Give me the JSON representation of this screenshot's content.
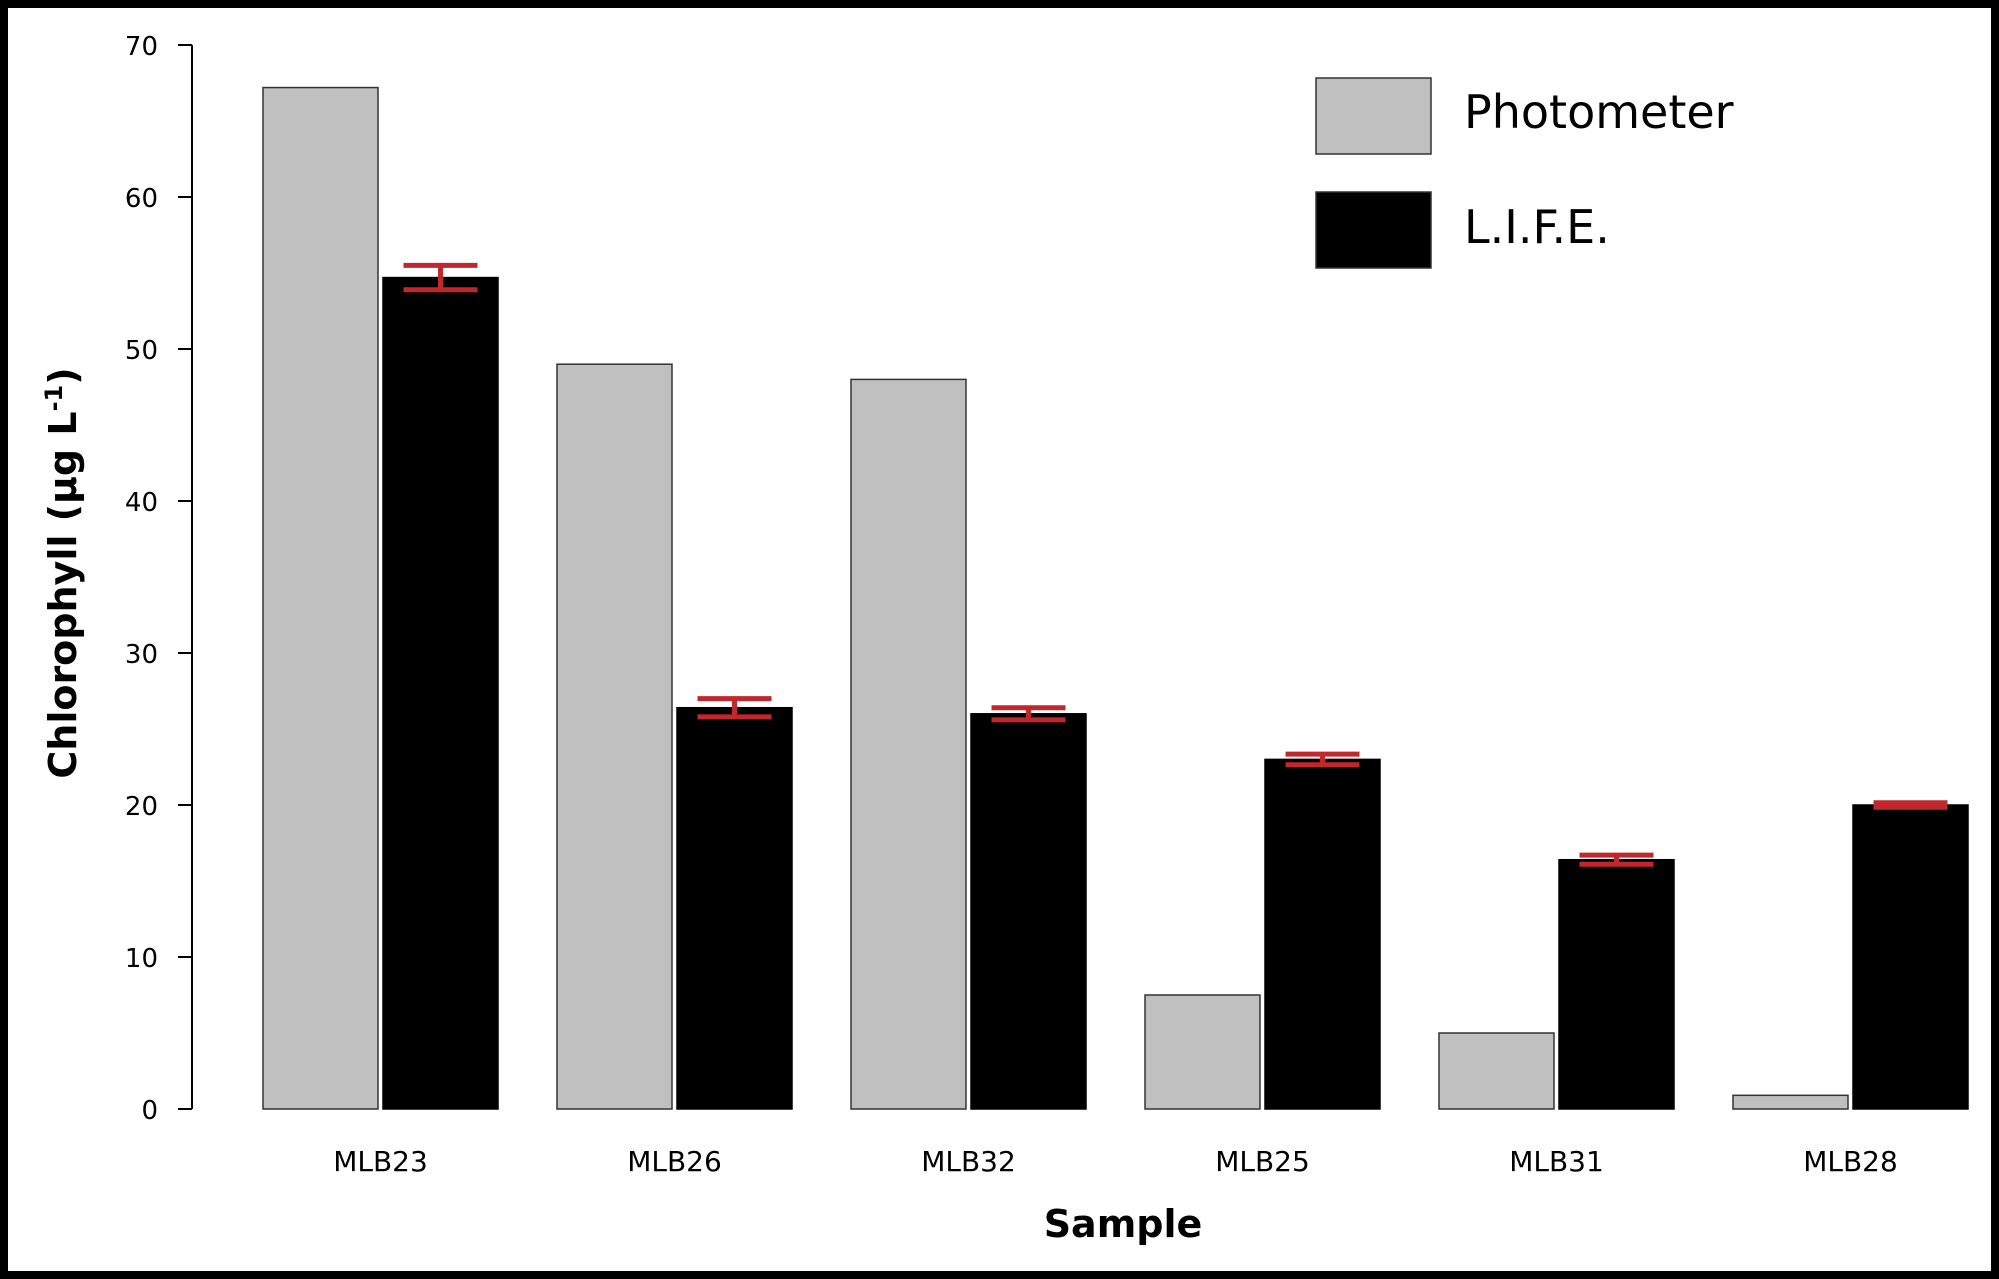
{
  "chart_data": {
    "type": "bar",
    "xlabel": "Sample",
    "ylabel": {
      "main": "Chlorophyll (μg L",
      "sup": "-1",
      "close": ")"
    },
    "ylim": [
      0,
      70
    ],
    "yticks": [
      0,
      10,
      20,
      30,
      40,
      50,
      60,
      70
    ],
    "categories": [
      "MLB23",
      "MLB26",
      "MLB32",
      "MLB25",
      "MLB31",
      "MLB28"
    ],
    "series": [
      {
        "name": "Photometer",
        "values": [
          67.2,
          49.0,
          48.0,
          7.5,
          5.0,
          0.9
        ],
        "color": "#c0c0c0"
      },
      {
        "name": "L.I.F.E.",
        "values": [
          54.7,
          26.4,
          26.0,
          23.0,
          16.4,
          20.0
        ],
        "color": "#000000",
        "error": [
          0.8,
          0.6,
          0.4,
          0.35,
          0.3,
          0.15
        ]
      }
    ],
    "error_bar_color": "#c0282d",
    "legend_position": "top-right",
    "grid": false
  }
}
